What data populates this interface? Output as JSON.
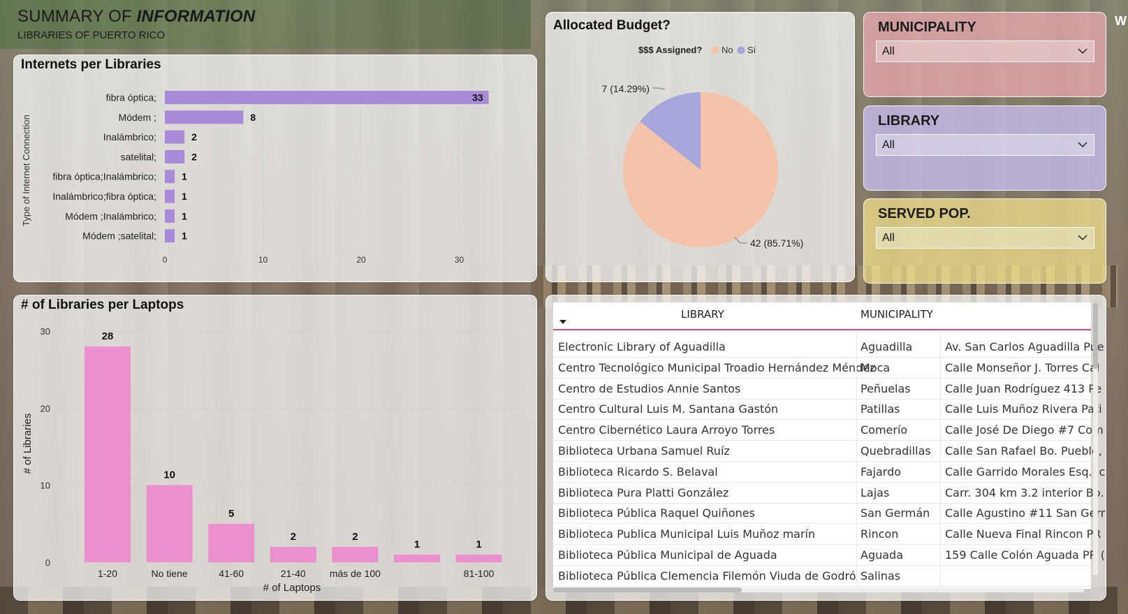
{
  "header": {
    "title_plain": "SUMMARY OF ",
    "title_bold": "INFORMATION",
    "subtitle": "LIBRARIES OF PUERTO RICO"
  },
  "internet_chart": {
    "title": "Internets per Libraries",
    "ylabel": "Type of Internet Connection",
    "ticks": [
      "0",
      "10",
      "20",
      "30"
    ],
    "color": "#a78bd8"
  },
  "laptop_chart": {
    "title": "# of Libraries per Laptops",
    "ylabel": "# of Libraries",
    "xlabel": "# of Laptops",
    "ticks": [
      "0",
      "10",
      "20",
      "30"
    ],
    "color": "#ec8fce"
  },
  "budget_chart": {
    "title": "Allocated Budget?",
    "legend_title": "$$$ Assigned?",
    "legend": [
      {
        "name": "No",
        "color": "#f5c2aa"
      },
      {
        "name": "Sí",
        "color": "#a6a5dc"
      }
    ],
    "label_si": "7 (14.29%)",
    "label_no": "42 (85.71%)"
  },
  "slicers": {
    "municipality": {
      "title": "MUNICIPALITY",
      "value": "All"
    },
    "library": {
      "title": "LIBRARY",
      "value": "All"
    },
    "served_pop": {
      "title": "SERVED POP.",
      "value": "All"
    }
  },
  "table": {
    "headers": [
      "LIBRARY",
      "MUNICIPALITY",
      ""
    ],
    "rows": [
      [
        "Electronic Library of Aguadilla",
        "Aguadilla",
        "Av. San Carlos Aguadilla Pue"
      ],
      [
        "Centro Tecnológico Municipal Troadio Hernández Méndez",
        "Moca",
        "Calle Monseñor J. Torres Cal"
      ],
      [
        "Centro de Estudios Annie Santos",
        "Peñuelas",
        "Calle Juan Rodríguez 413 Pe"
      ],
      [
        "Centro Cultural Luis M. Santana Gastón",
        "Patillas",
        "Calle Luis Muñoz Rivera Pati"
      ],
      [
        "Centro Cibernético Laura Arroyo Torres",
        "Comerío",
        "Calle José De Diego #7 Com"
      ],
      [
        "Biblioteca Urbana Samuel Ruíz",
        "Quebradillas",
        "Calle San Rafael Bo. Pueblo,"
      ],
      [
        "Biblioteca Ricardo S. Belaval",
        "Fajardo",
        "Calle Garrido Morales Esq. Jc"
      ],
      [
        "Biblioteca Pura Platti González",
        "Lajas",
        "Carr. 304 km 3.2 interior Bo."
      ],
      [
        "Biblioteca Pública Raquel Quiñones",
        "San Germán",
        "Calle Agustino #11 San Gerr"
      ],
      [
        "Biblioteca Publica Municipal Luis Muñoz marín",
        "Rincon",
        "Calle Nueva Final Rincon PR"
      ],
      [
        "Biblioteca Pública Municipal de Aguada",
        "Aguada",
        "159 Calle Colón Aguada PR ("
      ],
      [
        "Biblioteca Pública Clemencia Filemón Viuda de Godró",
        "Salinas",
        ""
      ]
    ]
  },
  "chart_data": [
    {
      "type": "bar",
      "orientation": "horizontal",
      "title": "Internets per Libraries",
      "ylabel": "Type of Internet Connection",
      "xlabel": "",
      "categories": [
        "fibra óptica;",
        "Módem ;",
        "Inalámbrico;",
        "satelital;",
        "fibra óptica;Inalámbrico;",
        "Inalámbrico;fibra óptica;",
        "Módem ;Inalámbrico;",
        "Módem ;satelital;"
      ],
      "values": [
        33,
        8,
        2,
        2,
        1,
        1,
        1,
        1
      ],
      "xlim": [
        0,
        35
      ],
      "grid": true
    },
    {
      "type": "bar",
      "orientation": "vertical",
      "title": "# of Libraries per Laptops",
      "xlabel": "# of Laptops",
      "ylabel": "# of Libraries",
      "categories": [
        "1-20",
        "No tiene",
        "41-60",
        "21-40",
        "más de 100",
        "",
        "81-100"
      ],
      "values": [
        28,
        10,
        5,
        2,
        2,
        1,
        1
      ],
      "ylim": [
        0,
        30
      ],
      "grid": true
    },
    {
      "type": "pie",
      "title": "Allocated Budget?",
      "legend_title": "$$$ Assigned?",
      "categories": [
        "No",
        "Sí"
      ],
      "values": [
        42,
        7
      ],
      "labels": [
        "42 (85.71%)",
        "7 (14.29%)"
      ]
    }
  ]
}
